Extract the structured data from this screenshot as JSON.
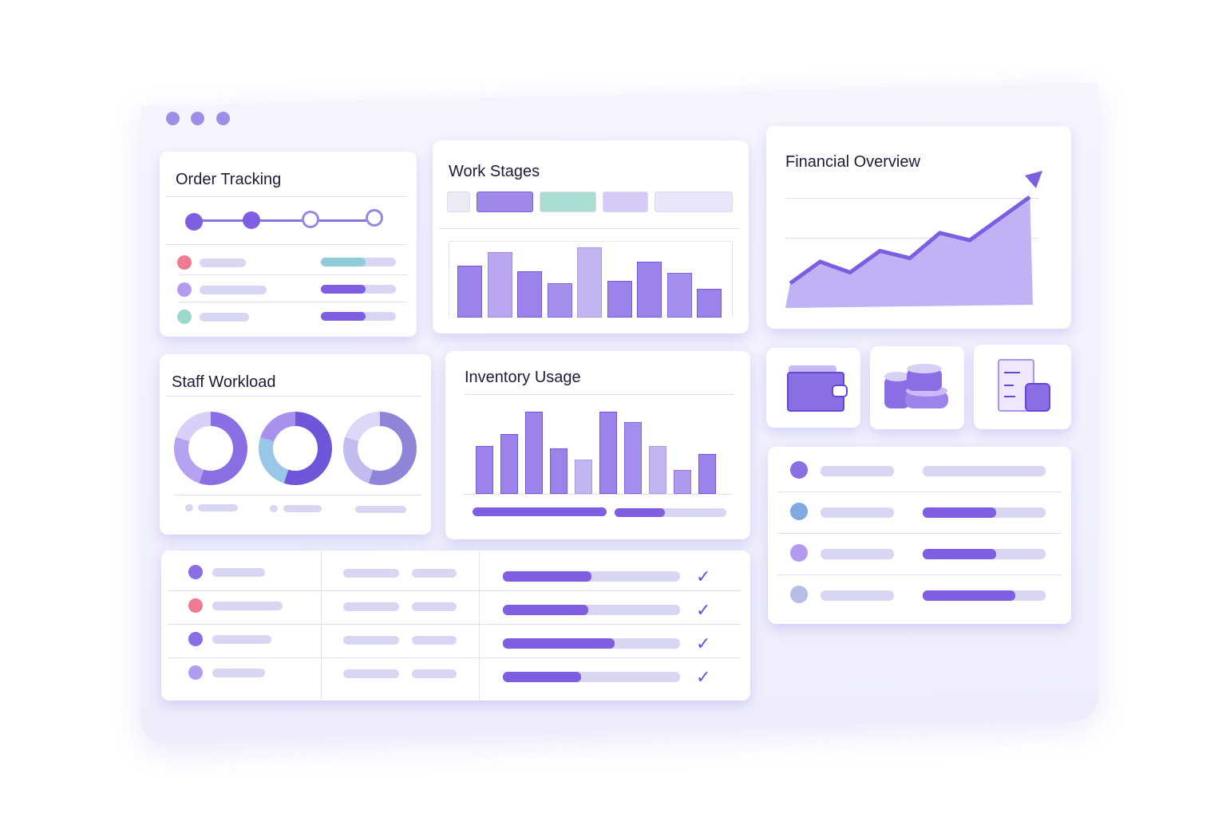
{
  "window": {
    "controls": [
      "dot",
      "dot",
      "dot"
    ]
  },
  "order_tracking": {
    "title": "Order Tracking",
    "steps_completed": 2,
    "steps_total": 4,
    "rows": [
      {
        "color": "#ee7b92",
        "progress": 0.6,
        "bar_color": "#8fcbd9"
      },
      {
        "color": "#b39cf0",
        "progress": 0.6,
        "bar_color": "#7e5fe2"
      },
      {
        "color": "#9ed8cc",
        "progress": 0.6,
        "bar_color": "#7e5fe2"
      }
    ]
  },
  "work_stages": {
    "title": "Work Stages",
    "stage_colors": [
      "#eceaf3",
      "#a08ae9",
      "#a8ddd2",
      "#d5cbf6",
      "#e8e6f8"
    ],
    "bars": [
      65,
      82,
      58,
      43,
      88,
      46,
      70,
      56,
      36
    ]
  },
  "financial_overview": {
    "title": "Financial Overview",
    "trend": [
      10,
      40,
      25,
      55,
      45,
      80,
      70,
      100,
      130
    ]
  },
  "staff_workload": {
    "title": "Staff Workload",
    "donuts": [
      {
        "colors": [
          "#8a6fe4",
          "#b4a2f0",
          "#d9d0f8"
        ]
      },
      {
        "colors": [
          "#6f55d8",
          "#9ac7e8",
          "#a890ee"
        ]
      },
      {
        "colors": [
          "#8f85d8",
          "#c2bbee",
          "#dcd8f6"
        ]
      }
    ]
  },
  "inventory_usage": {
    "title": "Inventory Usage",
    "bars": [
      60,
      75,
      103,
      57,
      43,
      103,
      90,
      60,
      30,
      50
    ],
    "progress": [
      1.0,
      0.45
    ]
  },
  "quick_icons": [
    "wallet-icon",
    "coins-icon",
    "document-icon"
  ],
  "status_list": {
    "rows": [
      {
        "color": "#8a6fe4",
        "progress": 0
      },
      {
        "color": "#7fa9e0",
        "progress": 0.6
      },
      {
        "color": "#b39cf0",
        "progress": 0.6
      },
      {
        "color": "#b7bce6",
        "progress": 0.75
      }
    ]
  },
  "task_table": {
    "rows": [
      {
        "color": "#8a6fe4",
        "progress": 0.5
      },
      {
        "color": "#ee7b92",
        "progress": 0.48
      },
      {
        "color": "#8a6fe4",
        "progress": 0.63
      },
      {
        "color": "#b39cf0",
        "progress": 0.44
      }
    ],
    "check": "✓"
  }
}
